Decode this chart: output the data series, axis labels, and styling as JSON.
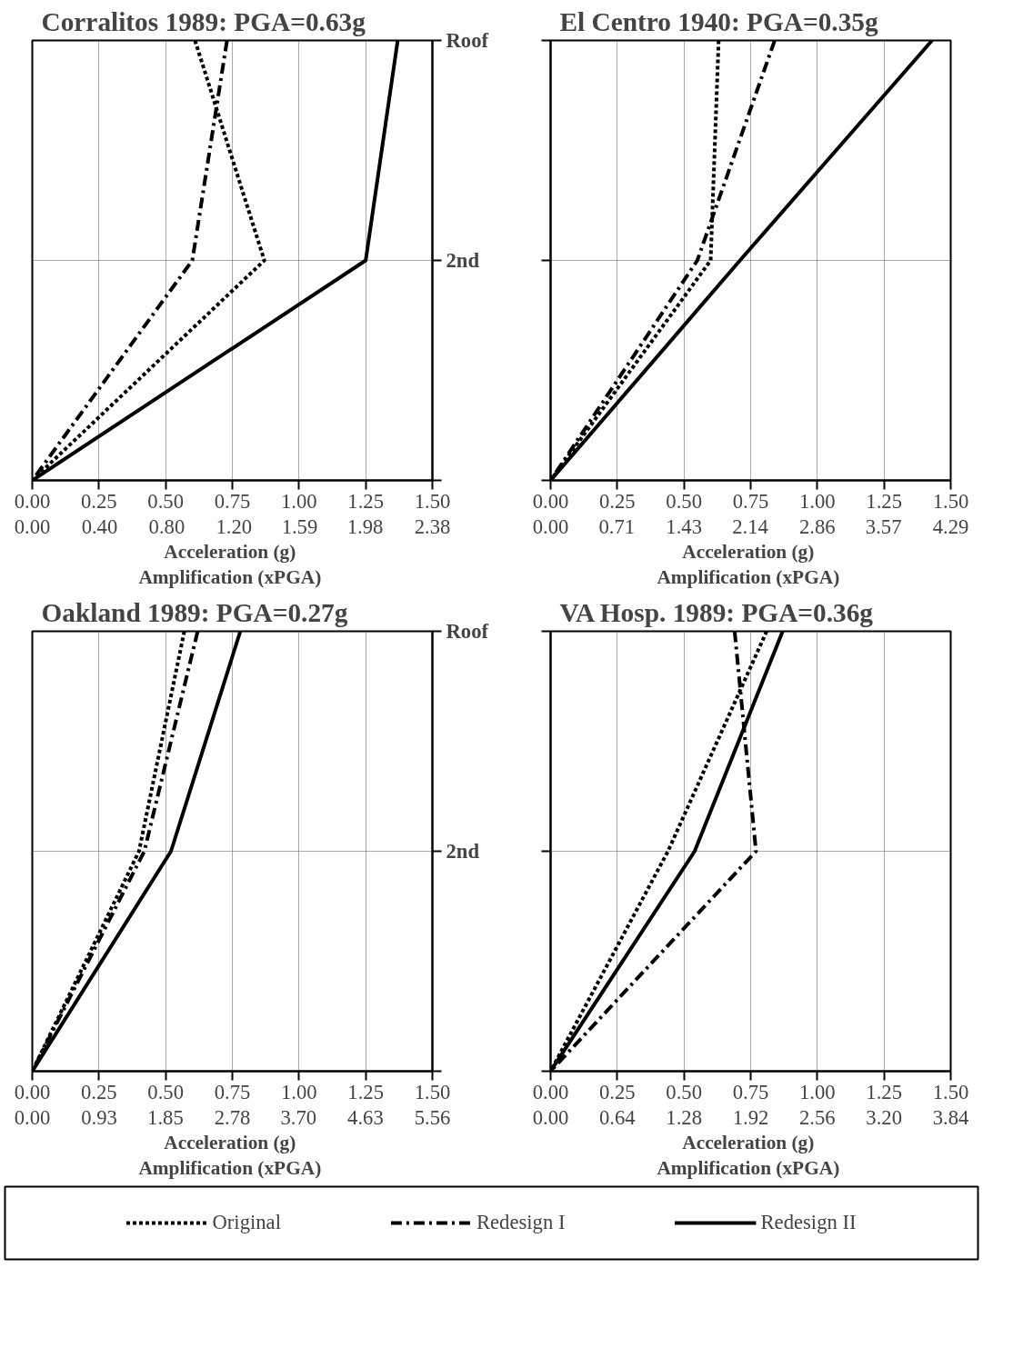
{
  "chart_data": [
    {
      "type": "line",
      "orientation": "horizontal",
      "title": "Corralitos  1989:  PGA=0.63g",
      "xlabel": "Acceleration  (g)",
      "x2label": "Amplification  (xPGA)",
      "xlim": [
        0,
        1.5
      ],
      "xticks": [
        {
          "value": 0,
          "label": "0.00"
        },
        {
          "value": 0.25,
          "label": "0.25"
        },
        {
          "value": 0.5,
          "label": "0.50"
        },
        {
          "value": 0.75,
          "label": "0.75"
        },
        {
          "value": 1,
          "label": "1.00"
        },
        {
          "value": 1.25,
          "label": "1.25"
        },
        {
          "value": 1.5,
          "label": "1.50"
        }
      ],
      "x2lim": [
        0,
        2.38
      ],
      "x2ticks": [
        {
          "value": 0,
          "label": "0.00"
        },
        {
          "value": 0.4,
          "label": "0.40"
        },
        {
          "value": 0.8,
          "label": "0.80"
        },
        {
          "value": 1.2,
          "label": "1.20"
        },
        {
          "value": 1.59,
          "label": "1.59"
        },
        {
          "value": 1.98,
          "label": "1.98"
        },
        {
          "value": 2.38,
          "label": "2.38"
        }
      ],
      "categories": [
        "Roof",
        "2nd",
        null
      ],
      "grid": true,
      "series": [
        {
          "color": "#000000",
          "line_style": "dotted",
          "values": [
            0.61,
            0.87,
            0
          ]
        },
        {
          "color": "#000000",
          "line_style": "dashdot",
          "values": [
            0.73,
            0.6,
            0
          ]
        },
        {
          "color": "#000000",
          "line_style": "solid",
          "values": [
            1.37,
            1.25,
            0
          ]
        }
      ]
    },
    {
      "type": "line",
      "orientation": "horizontal",
      "title": "El Centro  1940:  PGA=0.35g",
      "xlabel": "Acceleration  (g)",
      "x2label": "Amplification  (xPGA)",
      "xlim": [
        0,
        1.5
      ],
      "xticks": [
        {
          "value": 0,
          "label": "0.00"
        },
        {
          "value": 0.25,
          "label": "0.25"
        },
        {
          "value": 0.5,
          "label": "0.50"
        },
        {
          "value": 0.75,
          "label": "0.75"
        },
        {
          "value": 1,
          "label": "1.00"
        },
        {
          "value": 1.25,
          "label": "1.25"
        },
        {
          "value": 1.5,
          "label": "1.50"
        }
      ],
      "x2lim": [
        0,
        4.29
      ],
      "x2ticks": [
        {
          "value": 0,
          "label": "0.00"
        },
        {
          "value": 0.71,
          "label": "0.71"
        },
        {
          "value": 1.43,
          "label": "1.43"
        },
        {
          "value": 2.14,
          "label": "2.14"
        },
        {
          "value": 2.86,
          "label": "2.86"
        },
        {
          "value": 3.57,
          "label": "3.57"
        },
        {
          "value": 4.29,
          "label": "4.29"
        }
      ],
      "categories": [
        null,
        null,
        null
      ],
      "grid": true,
      "series": [
        {
          "color": "#000000",
          "line_style": "dotted",
          "values": [
            0.63,
            0.6,
            0
          ]
        },
        {
          "color": "#000000",
          "line_style": "dashdot",
          "values": [
            0.84,
            0.55,
            0
          ]
        },
        {
          "color": "#000000",
          "line_style": "solid",
          "values": [
            1.43,
            0.71,
            0
          ]
        }
      ]
    },
    {
      "type": "line",
      "orientation": "horizontal",
      "title": "Oakland  1989:  PGA=0.27g",
      "xlabel": "Acceleration  (g)",
      "x2label": "Amplification  (xPGA)",
      "xlim": [
        0,
        1.5
      ],
      "xticks": [
        {
          "value": 0,
          "label": "0.00"
        },
        {
          "value": 0.25,
          "label": "0.25"
        },
        {
          "value": 0.5,
          "label": "0.50"
        },
        {
          "value": 0.75,
          "label": "0.75"
        },
        {
          "value": 1,
          "label": "1.00"
        },
        {
          "value": 1.25,
          "label": "1.25"
        },
        {
          "value": 1.5,
          "label": "1.50"
        }
      ],
      "x2lim": [
        0,
        5.56
      ],
      "x2ticks": [
        {
          "value": 0,
          "label": "0.00"
        },
        {
          "value": 0.93,
          "label": "0.93"
        },
        {
          "value": 1.85,
          "label": "1.85"
        },
        {
          "value": 2.78,
          "label": "2.78"
        },
        {
          "value": 3.7,
          "label": "3.70"
        },
        {
          "value": 4.63,
          "label": "4.63"
        },
        {
          "value": 5.56,
          "label": "5.56"
        }
      ],
      "categories": [
        "Roof",
        "2nd",
        null
      ],
      "grid": true,
      "series": [
        {
          "color": "#000000",
          "line_style": "dotted",
          "values": [
            0.57,
            0.4,
            0
          ]
        },
        {
          "color": "#000000",
          "line_style": "dashdot",
          "values": [
            0.62,
            0.42,
            0
          ]
        },
        {
          "color": "#000000",
          "line_style": "solid",
          "values": [
            0.78,
            0.52,
            0
          ]
        }
      ]
    },
    {
      "type": "line",
      "orientation": "horizontal",
      "title": "VA  Hosp.  1989:  PGA=0.36g",
      "xlabel": "Acceleration  (g)",
      "x2label": "Amplification  (xPGA)",
      "xlim": [
        0,
        1.5
      ],
      "xticks": [
        {
          "value": 0,
          "label": "0.00"
        },
        {
          "value": 0.25,
          "label": "0.25"
        },
        {
          "value": 0.5,
          "label": "0.50"
        },
        {
          "value": 0.75,
          "label": "0.75"
        },
        {
          "value": 1,
          "label": "1.00"
        },
        {
          "value": 1.25,
          "label": "1.25"
        },
        {
          "value": 1.5,
          "label": "1.50"
        }
      ],
      "x2lim": [
        0,
        3.84
      ],
      "x2ticks": [
        {
          "value": 0,
          "label": "0.00"
        },
        {
          "value": 0.64,
          "label": "0.64"
        },
        {
          "value": 1.28,
          "label": "1.28"
        },
        {
          "value": 1.92,
          "label": "1.92"
        },
        {
          "value": 2.56,
          "label": "2.56"
        },
        {
          "value": 3.2,
          "label": "3.20"
        },
        {
          "value": 3.84,
          "label": "3.84"
        }
      ],
      "categories": [
        null,
        null,
        null
      ],
      "grid": true,
      "legend": "bottom",
      "series": [
        {
          "name": "Original",
          "color": "#000000",
          "line_style": "dotted",
          "values": [
            0.81,
            0.44,
            0
          ]
        },
        {
          "name": "Redesign I",
          "color": "#000000",
          "line_style": "dashdot",
          "values": [
            0.69,
            0.77,
            0
          ]
        },
        {
          "name": "Redesign II",
          "color": "#000000",
          "line_style": "solid",
          "values": [
            0.87,
            0.54,
            0
          ]
        }
      ]
    }
  ]
}
